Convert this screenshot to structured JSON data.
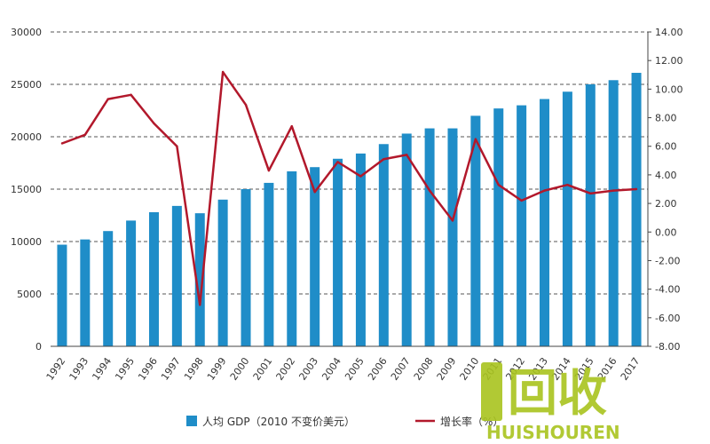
{
  "chart_data": {
    "type": "bar",
    "categories": [
      "1992",
      "1993",
      "1994",
      "1995",
      "1996",
      "1997",
      "1998",
      "1999",
      "2000",
      "2001",
      "2002",
      "2003",
      "2004",
      "2005",
      "2006",
      "2007",
      "2008",
      "2009",
      "2010",
      "2011",
      "2012",
      "2013",
      "2014",
      "2015",
      "2016",
      "2017"
    ],
    "series": [
      {
        "name": "人均 GDP（2010 不变价美元）",
        "type": "bar",
        "axis": "left",
        "color": "#1f8dc8",
        "values": [
          9700,
          10200,
          11000,
          12000,
          12800,
          13400,
          12700,
          14000,
          15000,
          15600,
          16700,
          17100,
          17900,
          18400,
          19300,
          20300,
          20800,
          20800,
          22000,
          22700,
          23000,
          23600,
          24300,
          25000,
          25400,
          26100
        ]
      },
      {
        "name": "增长率（%）",
        "type": "line",
        "axis": "right",
        "color": "#b2182b",
        "values": [
          6.2,
          6.8,
          9.3,
          9.6,
          7.6,
          6.0,
          -5.1,
          11.2,
          8.9,
          4.3,
          7.4,
          2.8,
          4.9,
          3.9,
          5.1,
          5.4,
          2.9,
          0.8,
          6.5,
          3.3,
          2.2,
          2.9,
          3.3,
          2.7,
          2.9,
          3.0
        ]
      }
    ],
    "ylim_left": [
      0,
      30000
    ],
    "yticks_left": [
      "0",
      "5000",
      "10000",
      "15000",
      "20000",
      "25000",
      "30000"
    ],
    "ylim_right": [
      -8,
      14
    ],
    "yticks_right": [
      "-8.00",
      "-6.00",
      "-4.00",
      "-2.00",
      "0.00",
      "2.00",
      "4.00",
      "6.00",
      "8.00",
      "10.00",
      "12.00",
      "14.00"
    ],
    "grid": "dashed-horizontal",
    "legend_position": "bottom",
    "legend": [
      {
        "label": "人均 GDP（2010 不变价美元）",
        "color": "#1f8dc8",
        "kind": "bar"
      },
      {
        "label": "增长率（%）",
        "color": "#b2182b",
        "kind": "line"
      }
    ]
  },
  "watermark": {
    "main_text": "回收",
    "sub_text": "HUISHOUREN",
    "color": "#a9c41f",
    "icon": "recycle-logo-icon"
  }
}
